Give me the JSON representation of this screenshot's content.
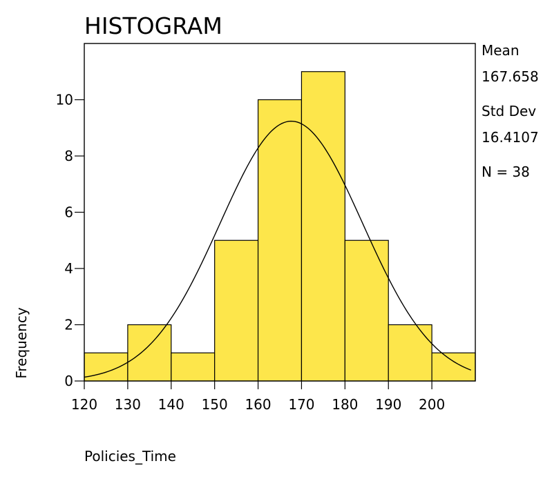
{
  "chart_data": {
    "type": "bar",
    "title": "HISTOGRAM",
    "xlabel": "Policies_Time",
    "ylabel": "Frequency",
    "bins": [
      {
        "start": 120,
        "end": 130,
        "count": 1
      },
      {
        "start": 130,
        "end": 140,
        "count": 2
      },
      {
        "start": 140,
        "end": 150,
        "count": 1
      },
      {
        "start": 150,
        "end": 160,
        "count": 5
      },
      {
        "start": 160,
        "end": 170,
        "count": 10
      },
      {
        "start": 170,
        "end": 180,
        "count": 11
      },
      {
        "start": 180,
        "end": 190,
        "count": 5
      },
      {
        "start": 190,
        "end": 200,
        "count": 2
      },
      {
        "start": 200,
        "end": 210,
        "count": 1
      }
    ],
    "xlim": [
      120,
      210
    ],
    "ylim": [
      0,
      12
    ],
    "xticks": [
      120,
      130,
      140,
      150,
      160,
      170,
      180,
      190,
      200
    ],
    "yticks": [
      0,
      2,
      4,
      6,
      8,
      10
    ],
    "bar_color": "#fde64b",
    "normal_curve": {
      "mean": 167.658,
      "sd": 16.4107,
      "n": 38,
      "bin_width": 10
    },
    "stats": [
      {
        "label": "Mean",
        "value": "167.658"
      },
      {
        "label": "Std Dev",
        "value": "16.4107"
      },
      {
        "label": "N = 38",
        "value": ""
      }
    ]
  }
}
